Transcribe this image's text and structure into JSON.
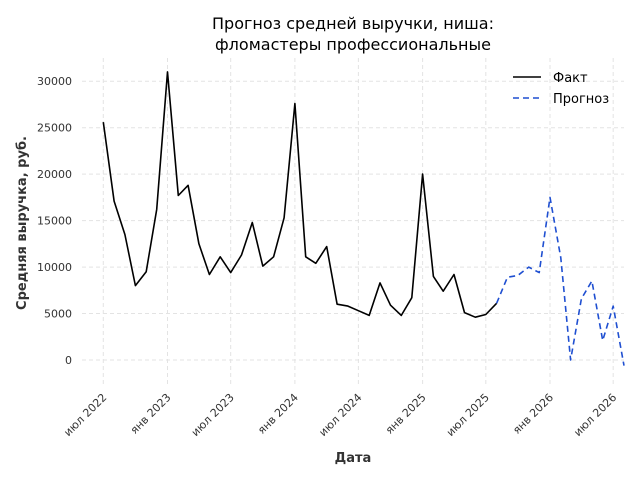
{
  "chart_data": {
    "type": "line",
    "title_lines": [
      "Прогноз средней выручки, ниша:",
      "фломастеры профессиональные"
    ],
    "xlabel": "Дата",
    "ylabel": "Средняя выручка, руб.",
    "x_ticks": [
      "июл 2022",
      "янв 2023",
      "июл 2023",
      "янв 2024",
      "июл 2024",
      "янв 2025",
      "июл 2025",
      "янв 2026",
      "июл 2026"
    ],
    "y_ticks": [
      0,
      5000,
      10000,
      15000,
      20000,
      25000,
      30000
    ],
    "ylim": [
      -2800,
      32500
    ],
    "x_range": [
      "2022-05-01",
      "2026-08-01"
    ],
    "grid": true,
    "legend_position": "top-right",
    "colors": {
      "fact": "#000000",
      "forecast": "#1f4fd1"
    },
    "series": [
      {
        "name": "Факт",
        "style": "solid",
        "x": [
          "2022-07-01",
          "2022-08-01",
          "2022-09-01",
          "2022-10-01",
          "2022-11-01",
          "2022-12-01",
          "2023-01-01",
          "2023-02-01",
          "2023-03-01",
          "2023-04-01",
          "2023-05-01",
          "2023-06-01",
          "2023-07-01",
          "2023-08-01",
          "2023-09-01",
          "2023-10-01",
          "2023-11-01",
          "2023-12-01",
          "2024-01-01",
          "2024-02-01",
          "2024-03-01",
          "2024-04-01",
          "2024-05-01",
          "2024-06-01",
          "2024-07-01",
          "2024-08-01",
          "2024-09-01",
          "2024-10-01",
          "2024-11-01",
          "2024-12-01",
          "2025-01-01",
          "2025-02-01",
          "2025-03-01",
          "2025-04-01",
          "2025-05-01",
          "2025-06-01",
          "2025-07-01",
          "2025-08-01"
        ],
        "y": [
          25600,
          17100,
          13500,
          8000,
          9500,
          16200,
          31000,
          17700,
          18800,
          12500,
          9200,
          11100,
          9400,
          11300,
          14800,
          10100,
          11100,
          15300,
          27600,
          11100,
          10400,
          12200,
          6000,
          5800,
          5300,
          4800,
          8300,
          5900,
          4800,
          6700,
          20000,
          9000,
          7400,
          9200,
          5100,
          4600,
          4900,
          6100
        ]
      },
      {
        "name": "Прогноз",
        "style": "dashed",
        "x": [
          "2025-08-01",
          "2025-09-01",
          "2025-10-01",
          "2025-11-01",
          "2025-12-01",
          "2026-01-01",
          "2026-02-01",
          "2026-03-01",
          "2026-04-01",
          "2026-05-01",
          "2026-06-01",
          "2026-07-01",
          "2026-08-01"
        ],
        "y": [
          6100,
          8900,
          9100,
          10000,
          9400,
          17500,
          11000,
          0,
          6600,
          8500,
          2100,
          5800,
          -600
        ]
      }
    ]
  }
}
